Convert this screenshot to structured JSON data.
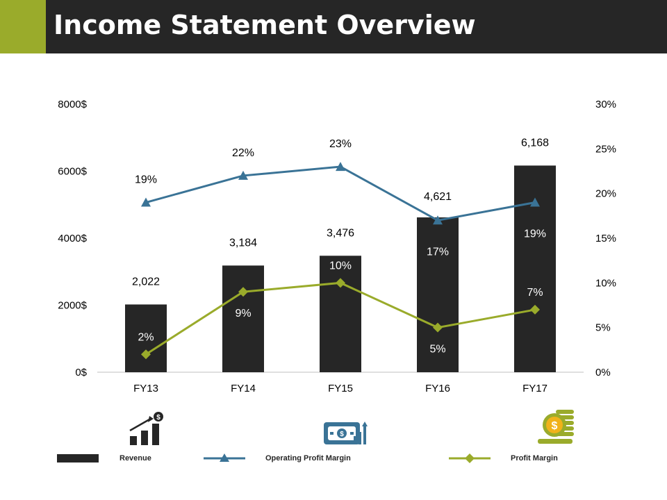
{
  "header": {
    "title": "Income Statement Overview",
    "accent_color": "#9aab2b",
    "bg_color": "#262626"
  },
  "chart_data": {
    "type": "bar",
    "categories": [
      "FY13",
      "FY14",
      "FY15",
      "FY16",
      "FY17"
    ],
    "series": [
      {
        "name": "Revenue",
        "kind": "bar",
        "axis": "left",
        "color": "#262626",
        "values": [
          2022,
          3184,
          3476,
          4621,
          6168
        ],
        "labels": [
          "2,022",
          "3,184",
          "3,476",
          "4,621",
          "6,168"
        ]
      },
      {
        "name": "Operating Profit Margin",
        "kind": "line",
        "axis": "right",
        "color": "#3a7396",
        "marker": "triangle",
        "values": [
          19,
          22,
          23,
          17,
          19
        ],
        "labels": [
          "19%",
          "22%",
          "23%",
          "17%",
          "19%"
        ]
      },
      {
        "name": "Profit Margin",
        "kind": "line",
        "axis": "right",
        "color": "#9aab2b",
        "marker": "diamond",
        "values": [
          2,
          9,
          10,
          5,
          7
        ],
        "labels": [
          "2%",
          "9%",
          "10%",
          "5%",
          "7%"
        ]
      }
    ],
    "y_left": {
      "ylim": [
        0,
        8000
      ],
      "ticks": [
        0,
        2000,
        4000,
        6000,
        8000
      ],
      "tick_labels": [
        "0$",
        "2000$",
        "4000$",
        "6000$",
        "8000$"
      ]
    },
    "y_right": {
      "ylim": [
        0,
        30
      ],
      "ticks": [
        0,
        5,
        10,
        15,
        20,
        25,
        30
      ],
      "tick_labels": [
        "0%",
        "5%",
        "10%",
        "15%",
        "20%",
        "25%",
        "30%"
      ]
    },
    "grid": false,
    "legend_position": "bottom"
  },
  "legend": {
    "revenue_label": "Revenue",
    "opm_label": "Operating Profit Margin",
    "pm_label": "Profit Margin"
  },
  "icons": [
    "growth-chart-dollar-icon",
    "money-bill-chart-icon",
    "coin-stack-icon"
  ]
}
